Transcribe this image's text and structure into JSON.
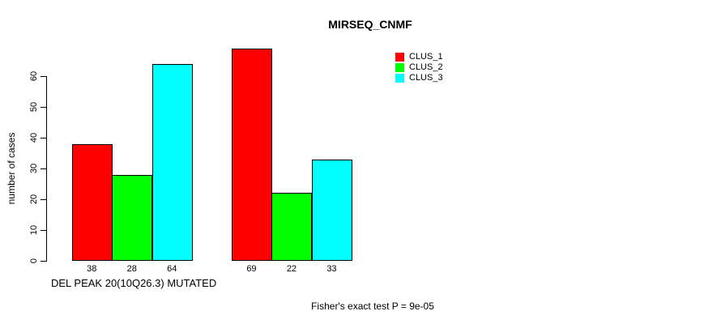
{
  "chart_data": {
    "type": "bar",
    "title": "MIRSEQ_CNMF",
    "ylabel": "number of cases",
    "xlabel": "DEL PEAK 20(10Q26.3) MUTATED",
    "annotation": "Fisher's exact test P = 9e-05",
    "legend": [
      "CLUS_1",
      "CLUS_2",
      "CLUS_3"
    ],
    "legend_position": "top-right",
    "series_colors": [
      "#FF0000",
      "#00FF00",
      "#00FFFF"
    ],
    "categories": [
      "DEL PEAK 20(10Q26.3) MUTATED",
      ""
    ],
    "series": [
      {
        "name": "CLUS_1",
        "values": [
          38,
          69
        ]
      },
      {
        "name": "CLUS_2",
        "values": [
          28,
          22
        ]
      },
      {
        "name": "CLUS_3",
        "values": [
          64,
          33
        ]
      }
    ],
    "groups": [
      {
        "name": "group-1",
        "values": [
          38,
          28,
          64
        ]
      },
      {
        "name": "group-2",
        "values": [
          69,
          22,
          33
        ]
      }
    ],
    "yticks": [
      0,
      10,
      20,
      30,
      40,
      50,
      60
    ],
    "ylim": [
      0,
      69
    ],
    "grid": false,
    "background": "#ffffff"
  }
}
